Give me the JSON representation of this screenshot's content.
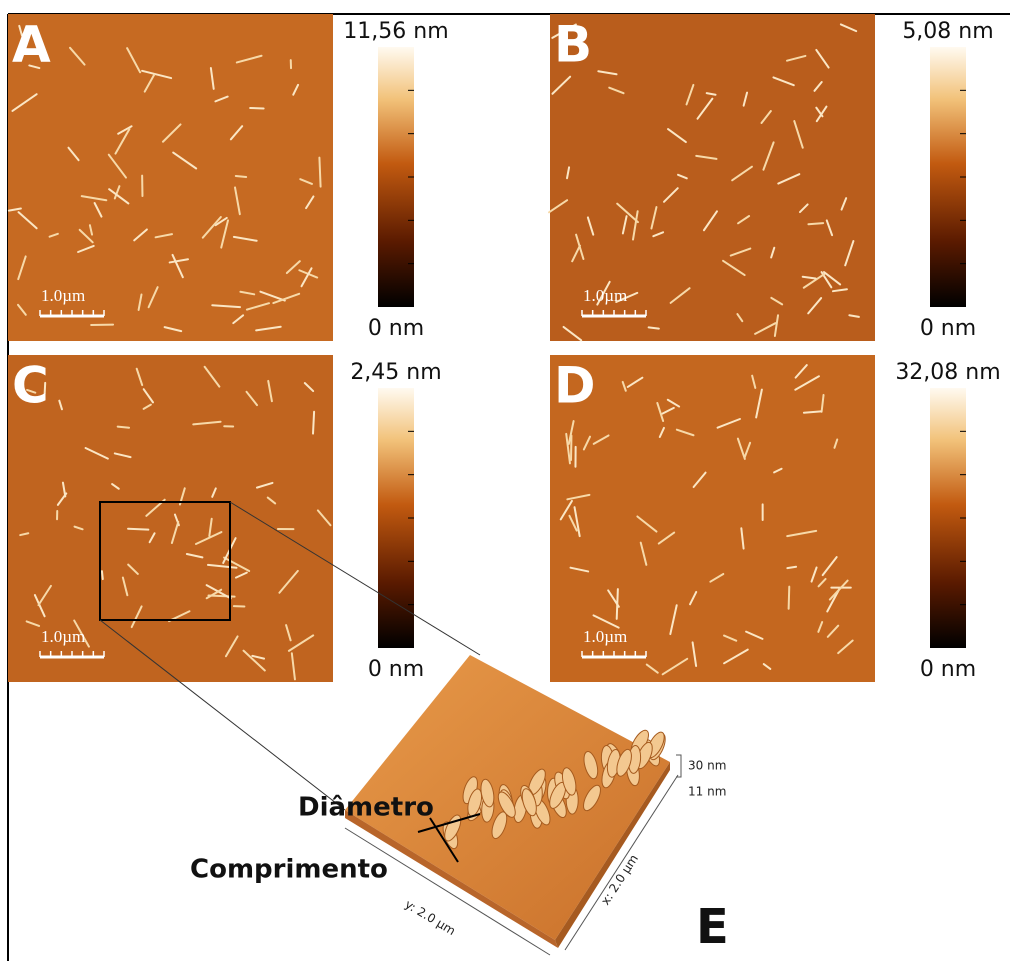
{
  "panels": [
    {
      "label": "A",
      "scale_bar": "1.0µm",
      "colorbar_max": "11,56 nm",
      "colorbar_min": "0 nm"
    },
    {
      "label": "B",
      "scale_bar": "1.0µm",
      "colorbar_max": "5,08 nm",
      "colorbar_min": "0 nm"
    },
    {
      "label": "C",
      "scale_bar": "1.0µm",
      "colorbar_max": "2,45 nm",
      "colorbar_min": "0 nm"
    },
    {
      "label": "D",
      "scale_bar": "1.0µm",
      "colorbar_max": "32,08 nm",
      "colorbar_min": "0 nm"
    }
  ],
  "inset": {
    "label": "E",
    "diameter": "Diâmetro",
    "length": "Comprimento",
    "z_top": "30 nm",
    "z_bottom": "11 nm",
    "x_axis": "x: 2.0 µm",
    "y_axis": "y: 2.0 µm"
  }
}
